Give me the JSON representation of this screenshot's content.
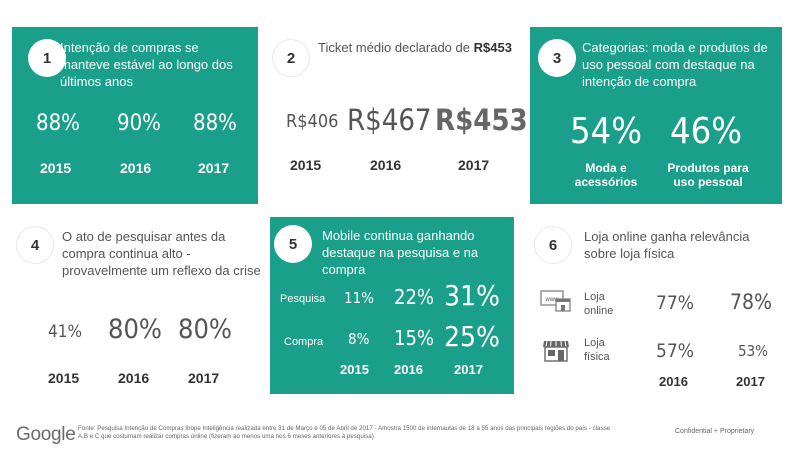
{
  "card1": {
    "number": "1",
    "title": "Intenção de compras se manteve estável ao longo dos últimos anos",
    "values": [
      "88%",
      "90%",
      "88%"
    ],
    "years": [
      "2015",
      "2016",
      "2017"
    ]
  },
  "card2": {
    "number": "2",
    "title_prefix": "Ticket médio declarado de ",
    "title_bold": "R$453",
    "values": [
      "R$406",
      "R$467",
      "R$453"
    ],
    "years": [
      "2015",
      "2016",
      "2017"
    ]
  },
  "card3": {
    "number": "3",
    "title": "Categorias: moda e produtos de uso pessoal com destaque na intenção de compra",
    "values": [
      "54%",
      "46%"
    ],
    "labels": [
      "Moda e acessórios",
      "Produtos para uso pessoal"
    ]
  },
  "card4": {
    "number": "4",
    "title": "O ato de pesquisar antes da compra continua alto - provavelmente um reflexo da crise",
    "values": [
      "41%",
      "80%",
      "80%"
    ],
    "years": [
      "2015",
      "2016",
      "2017"
    ]
  },
  "card5": {
    "number": "5",
    "title": "Mobile continua ganhando destaque na pesquisa e na compra",
    "rows": [
      {
        "label": "Pesquisa",
        "values": [
          "11%",
          "22%",
          "31%"
        ]
      },
      {
        "label": "Compra",
        "values": [
          "8%",
          "15%",
          "25%"
        ]
      }
    ],
    "years": [
      "2015",
      "2016",
      "2017"
    ]
  },
  "card6": {
    "number": "6",
    "title": "Loja online ganha relevância sobre loja física",
    "rows": [
      {
        "icon": "www-store-icon",
        "label": "Loja online",
        "values": [
          "77%",
          "78%"
        ]
      },
      {
        "icon": "store-icon",
        "label": "Loja física",
        "values": [
          "57%",
          "53%"
        ]
      }
    ],
    "years": [
      "2016",
      "2017"
    ]
  },
  "footer": {
    "logo": "Google",
    "note": "Fonte: Pesquisa Intenção de Compras Ibope Inteligência realizada entre 31 de Março e 05 de Abril de 2017 - Amostra 1500 de internautas de 18 a 55 anos das principais regiões do país - classe A,B e C que costumam realizar compras online (fizeram ao menos uma nos 6 meses anteriores à pesquisa)",
    "confidential": "Confidential + Proprietary"
  },
  "colors": {
    "teal": "#1aa08a",
    "text_gray": "#555555",
    "dark": "#333333"
  }
}
